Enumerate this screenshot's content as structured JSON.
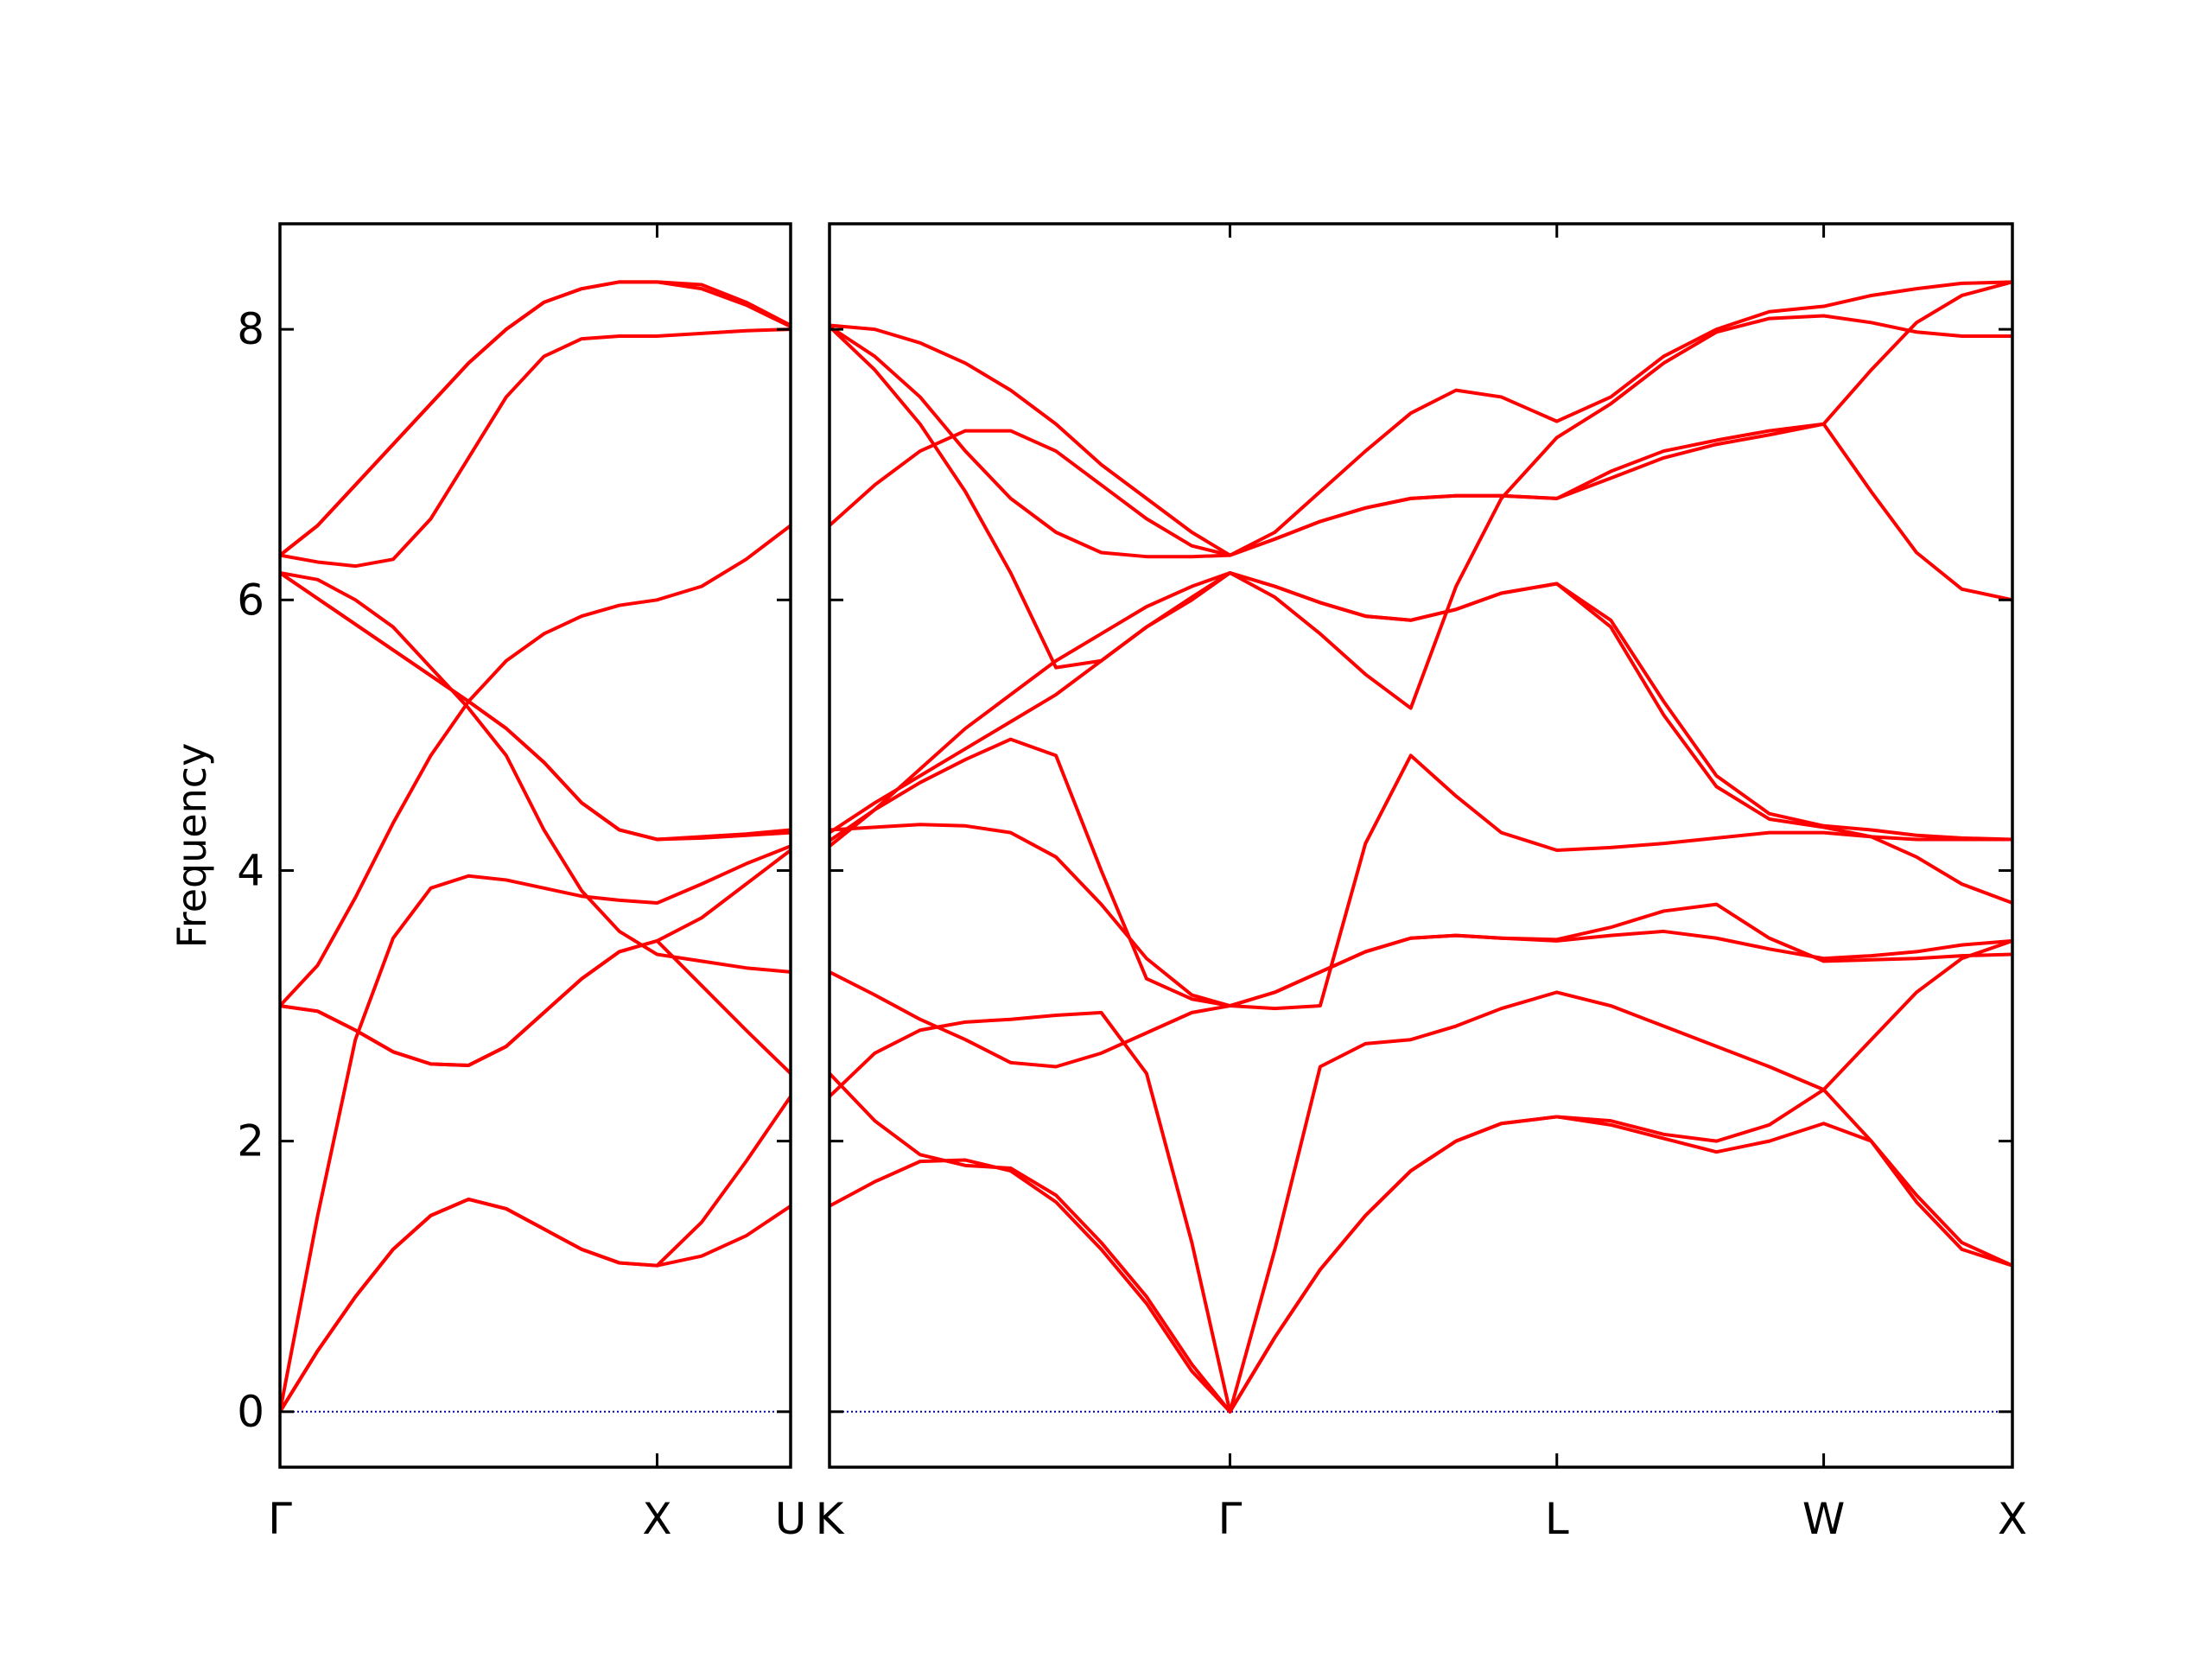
{
  "chart_data": [
    {
      "type": "line",
      "ylabel": "Frequency",
      "color": "#ff0000",
      "hline": {
        "value": 0,
        "color": "#0000b0",
        "style": "dotted"
      },
      "xlim": [
        0,
        1.354
      ],
      "ylim": [
        -0.41,
        8.78
      ],
      "xticks": [
        {
          "value": 0,
          "label": "Γ"
        },
        {
          "value": 1,
          "label": "X"
        },
        {
          "value": 1.354,
          "label": "U"
        }
      ],
      "yticks": [
        0,
        2,
        4,
        6,
        8
      ],
      "ytick_labels": true,
      "x": [
        0,
        0.1,
        0.2,
        0.3,
        0.4,
        0.5,
        0.6,
        0.7,
        0.8,
        0.9,
        1.0,
        1.118,
        1.236,
        1.354
      ],
      "series": [
        {
          "values": [
            0,
            0.45,
            0.85,
            1.2,
            1.45,
            1.57,
            1.5,
            1.35,
            1.2,
            1.1,
            1.08,
            1.15,
            1.3,
            1.52
          ]
        },
        {
          "values": [
            0,
            0.45,
            0.85,
            1.2,
            1.45,
            1.57,
            1.5,
            1.35,
            1.2,
            1.1,
            1.08,
            1.4,
            1.85,
            2.33
          ]
        },
        {
          "values": [
            0,
            1.45,
            2.75,
            3.5,
            3.87,
            3.96,
            3.93,
            3.87,
            3.81,
            3.78,
            3.76,
            3.9,
            4.05,
            4.18
          ]
        },
        {
          "values": [
            3.0,
            2.96,
            2.82,
            2.66,
            2.57,
            2.56,
            2.7,
            2.95,
            3.2,
            3.4,
            3.48,
            3.65,
            3.9,
            4.15
          ]
        },
        {
          "values": [
            3.0,
            2.96,
            2.82,
            2.66,
            2.57,
            2.56,
            2.7,
            2.95,
            3.2,
            3.4,
            3.48,
            3.15,
            2.82,
            2.5
          ]
        },
        {
          "values": [
            3.0,
            3.3,
            3.8,
            4.35,
            4.85,
            5.25,
            5.55,
            5.75,
            5.88,
            5.96,
            6.0,
            6.1,
            6.3,
            6.55
          ]
        },
        {
          "values": [
            6.2,
            6.01,
            5.82,
            5.63,
            5.44,
            5.25,
            5.05,
            4.8,
            4.5,
            4.3,
            4.23,
            4.24,
            4.26,
            4.28
          ]
        },
        {
          "values": [
            6.2,
            6.01,
            5.82,
            5.63,
            5.44,
            5.25,
            5.05,
            4.8,
            4.5,
            4.3,
            4.23,
            4.25,
            4.27,
            4.3
          ]
        },
        {
          "values": [
            6.2,
            6.15,
            6.0,
            5.8,
            5.5,
            5.2,
            4.85,
            4.3,
            3.85,
            3.55,
            3.38,
            3.33,
            3.28,
            3.25
          ]
        },
        {
          "values": [
            6.33,
            6.28,
            6.25,
            6.3,
            6.6,
            7.05,
            7.5,
            7.8,
            7.93,
            7.95,
            7.95,
            7.97,
            7.99,
            8.0
          ]
        },
        {
          "values": [
            6.33,
            6.55,
            6.85,
            7.15,
            7.45,
            7.75,
            8.0,
            8.2,
            8.3,
            8.35,
            8.35,
            8.3,
            8.18,
            8.02
          ]
        },
        {
          "values": [
            6.33,
            6.55,
            6.85,
            7.15,
            7.45,
            7.75,
            8.0,
            8.2,
            8.3,
            8.35,
            8.35,
            8.33,
            8.2,
            8.03
          ]
        }
      ]
    },
    {
      "type": "line",
      "color": "#ff0000",
      "hline": {
        "value": 0,
        "color": "#0000b0",
        "style": "dotted"
      },
      "xlim": [
        0,
        3.134
      ],
      "ylim": [
        -0.41,
        8.78
      ],
      "xticks": [
        {
          "value": 0,
          "label": "K"
        },
        {
          "value": 1.061,
          "label": "Γ"
        },
        {
          "value": 1.927,
          "label": "L"
        },
        {
          "value": 2.634,
          "label": "W"
        },
        {
          "value": 3.134,
          "label": "X"
        }
      ],
      "yticks": [
        0,
        2,
        4,
        6,
        8
      ],
      "ytick_labels": false,
      "x": [
        0,
        0.12,
        0.24,
        0.36,
        0.48,
        0.6,
        0.72,
        0.84,
        0.96,
        1.061,
        1.18,
        1.3,
        1.42,
        1.54,
        1.66,
        1.78,
        1.927,
        2.07,
        2.21,
        2.35,
        2.49,
        2.634,
        2.76,
        2.88,
        3.0,
        3.134
      ],
      "series": [
        {
          "values": [
            1.52,
            1.7,
            1.85,
            1.86,
            1.78,
            1.55,
            1.2,
            0.8,
            0.3,
            0,
            0.55,
            1.05,
            1.45,
            1.78,
            2.0,
            2.13,
            2.18,
            2.12,
            2.02,
            1.92,
            2.0,
            2.13,
            2.0,
            1.6,
            1.25,
            1.08
          ]
        },
        {
          "values": [
            2.5,
            2.15,
            1.9,
            1.82,
            1.8,
            1.6,
            1.25,
            0.85,
            0.35,
            0,
            0.55,
            1.05,
            1.45,
            1.78,
            2.0,
            2.13,
            2.18,
            2.15,
            2.05,
            2.0,
            2.12,
            2.38,
            2.0,
            1.55,
            1.2,
            1.08
          ]
        },
        {
          "values": [
            2.33,
            2.65,
            2.82,
            2.88,
            2.9,
            2.93,
            2.95,
            2.5,
            1.25,
            0,
            1.2,
            2.55,
            2.72,
            2.75,
            2.85,
            2.98,
            3.1,
            3.0,
            2.85,
            2.7,
            2.55,
            2.38,
            2.75,
            3.1,
            3.35,
            3.48
          ]
        },
        {
          "values": [
            3.25,
            3.08,
            2.9,
            2.75,
            2.58,
            2.55,
            2.65,
            2.8,
            2.95,
            3.0,
            3.1,
            3.25,
            3.4,
            3.5,
            3.52,
            3.5,
            3.48,
            3.52,
            3.55,
            3.5,
            3.42,
            3.35,
            3.37,
            3.4,
            3.45,
            3.48
          ]
        },
        {
          "values": [
            4.3,
            4.32,
            4.34,
            4.33,
            4.28,
            4.1,
            3.75,
            3.35,
            3.08,
            3.0,
            3.1,
            3.25,
            3.4,
            3.5,
            3.52,
            3.5,
            3.49,
            3.58,
            3.7,
            3.75,
            3.5,
            3.33,
            3.34,
            3.35,
            3.37,
            3.38
          ]
        },
        {
          "values": [
            4.22,
            4.45,
            4.65,
            4.82,
            4.97,
            4.85,
            4.0,
            3.2,
            3.05,
            3.0,
            2.98,
            3.0,
            4.2,
            4.85,
            4.55,
            4.28,
            4.15,
            4.17,
            4.2,
            4.24,
            4.28,
            4.28,
            4.25,
            4.23,
            4.23,
            4.23
          ]
        },
        {
          "values": [
            4.18,
            4.45,
            4.75,
            5.05,
            5.3,
            5.55,
            5.75,
            5.95,
            6.1,
            6.2,
            6.1,
            5.98,
            5.88,
            5.85,
            5.93,
            6.05,
            6.12,
            5.8,
            5.15,
            4.62,
            4.38,
            4.32,
            4.25,
            4.1,
            3.9,
            3.76
          ]
        },
        {
          "values": [
            4.28,
            4.5,
            4.7,
            4.9,
            5.1,
            5.3,
            5.55,
            5.8,
            6.0,
            6.2,
            6.1,
            5.98,
            5.88,
            5.85,
            5.93,
            6.05,
            6.12,
            5.85,
            5.25,
            4.7,
            4.42,
            4.33,
            4.3,
            4.26,
            4.24,
            4.23
          ]
        },
        {
          "values": [
            8.02,
            7.7,
            7.3,
            6.8,
            6.2,
            5.5,
            5.55,
            5.8,
            6.02,
            6.2,
            6.02,
            5.75,
            5.45,
            5.2,
            6.1,
            6.75,
            7.2,
            7.45,
            7.75,
            7.98,
            8.08,
            8.1,
            8.05,
            7.98,
            7.95,
            7.95
          ]
        },
        {
          "values": [
            6.55,
            6.85,
            7.1,
            7.25,
            7.25,
            7.1,
            6.85,
            6.6,
            6.4,
            6.33,
            6.45,
            6.58,
            6.68,
            6.75,
            6.77,
            6.77,
            6.75,
            6.95,
            7.1,
            7.18,
            7.25,
            7.3,
            7.7,
            8.05,
            8.25,
            8.35
          ]
        },
        {
          "values": [
            8.02,
            7.8,
            7.5,
            7.1,
            6.75,
            6.5,
            6.35,
            6.32,
            6.32,
            6.33,
            6.45,
            6.58,
            6.68,
            6.75,
            6.77,
            6.77,
            6.75,
            6.9,
            7.05,
            7.15,
            7.22,
            7.3,
            6.8,
            6.35,
            6.08,
            6.0
          ]
        },
        {
          "values": [
            8.03,
            8.0,
            7.9,
            7.75,
            7.55,
            7.3,
            7.0,
            6.75,
            6.5,
            6.33,
            6.5,
            6.8,
            7.1,
            7.38,
            7.55,
            7.5,
            7.32,
            7.5,
            7.8,
            8.0,
            8.13,
            8.17,
            8.25,
            8.3,
            8.34,
            8.35
          ]
        }
      ]
    }
  ]
}
